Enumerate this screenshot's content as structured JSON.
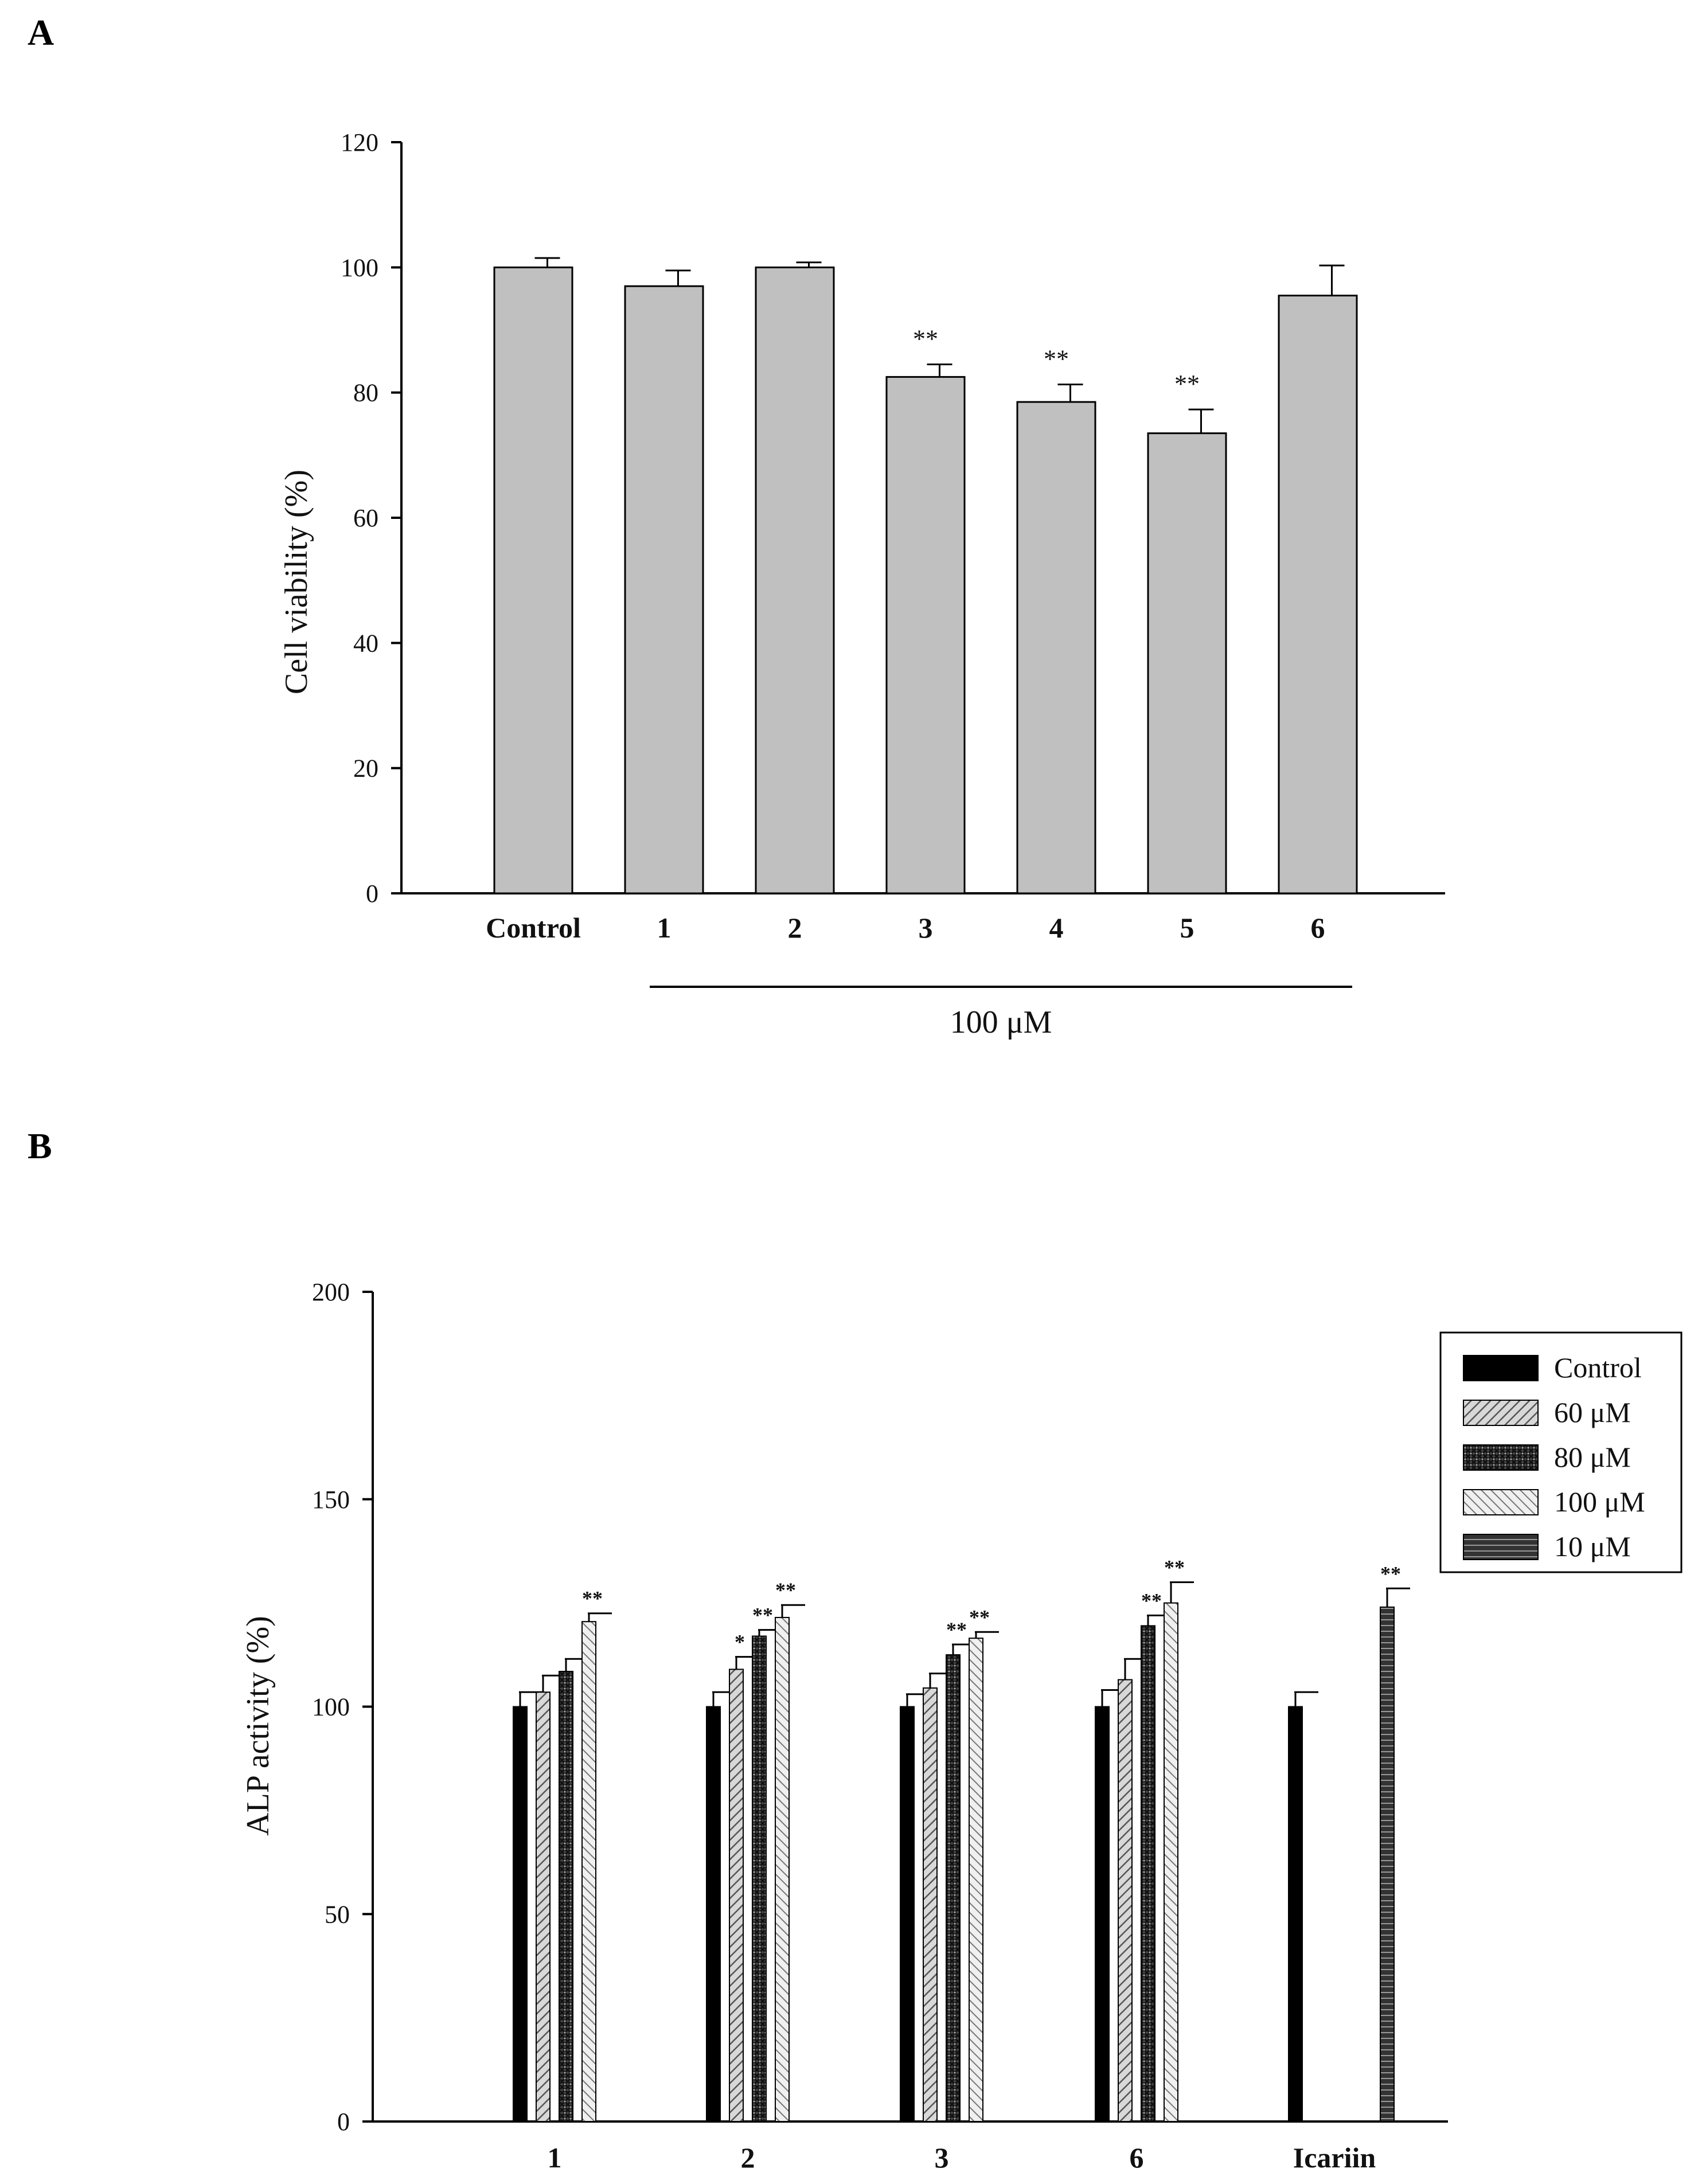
{
  "chart_data": [
    {
      "panel": "A",
      "type": "bar",
      "ylabel": "Cell viability (%)",
      "xlabel": "",
      "ylim": [
        0,
        120
      ],
      "yticks": [
        0,
        20,
        40,
        60,
        80,
        100,
        120
      ],
      "categories": [
        "Control",
        "1",
        "2",
        "3",
        "4",
        "5",
        "6"
      ],
      "values": [
        100,
        97,
        100,
        82.5,
        78.5,
        73.5,
        95.5
      ],
      "errors": [
        1.5,
        2.5,
        0.8,
        2.0,
        2.8,
        3.8,
        4.8
      ],
      "significance": [
        "",
        "",
        "",
        "**",
        "**",
        "**",
        ""
      ],
      "bar_color": "#c0c0c0",
      "group_bracket_label": "100 μM",
      "group_bracket_categories": [
        "1",
        "2",
        "3",
        "4",
        "5",
        "6"
      ]
    },
    {
      "panel": "B",
      "type": "bar",
      "ylabel": "ALP activity (%)",
      "xlabel": "",
      "ylim": [
        0,
        200
      ],
      "yticks": [
        0,
        50,
        100,
        150,
        200
      ],
      "categories": [
        "1",
        "2",
        "3",
        "6",
        "Icariin"
      ],
      "legend_position": "top-right",
      "series": [
        {
          "name": "Control",
          "pattern": "solid-black",
          "values": [
            100,
            100,
            100,
            100,
            100
          ],
          "errors": [
            3.5,
            3.5,
            3.0,
            4.0,
            3.5
          ],
          "significance": [
            "",
            "",
            "",
            "",
            ""
          ]
        },
        {
          "name": "60 μM",
          "pattern": "diagonal-light",
          "values": [
            103.5,
            109,
            104.5,
            106.5,
            null
          ],
          "errors": [
            4.0,
            3.0,
            3.5,
            5.0,
            null
          ],
          "significance": [
            "",
            "*",
            "",
            "",
            ""
          ]
        },
        {
          "name": "80 μM",
          "pattern": "crosshatch-dark",
          "values": [
            108.5,
            117,
            112.5,
            119.5,
            null
          ],
          "errors": [
            3.0,
            1.5,
            2.5,
            2.5,
            null
          ],
          "significance": [
            "",
            "**",
            "**",
            "**",
            ""
          ]
        },
        {
          "name": "100 μM",
          "pattern": "diagonal-reverse",
          "values": [
            120.5,
            121.5,
            116.5,
            125,
            null
          ],
          "errors": [
            2.0,
            3.0,
            1.5,
            5.0,
            null
          ],
          "significance": [
            "**",
            "**",
            "**",
            "**",
            ""
          ]
        },
        {
          "name": "10 μM",
          "pattern": "horizontal-dark",
          "values": [
            null,
            null,
            null,
            null,
            124
          ],
          "errors": [
            null,
            null,
            null,
            null,
            4.5
          ],
          "significance": [
            "",
            "",
            "",
            "",
            "**"
          ]
        }
      ]
    }
  ],
  "labels": {
    "panel_a": "A",
    "panel_b": "B"
  },
  "colors": {
    "axis": "#000000",
    "bar_a": "#c0c0c0",
    "black": "#000000"
  }
}
